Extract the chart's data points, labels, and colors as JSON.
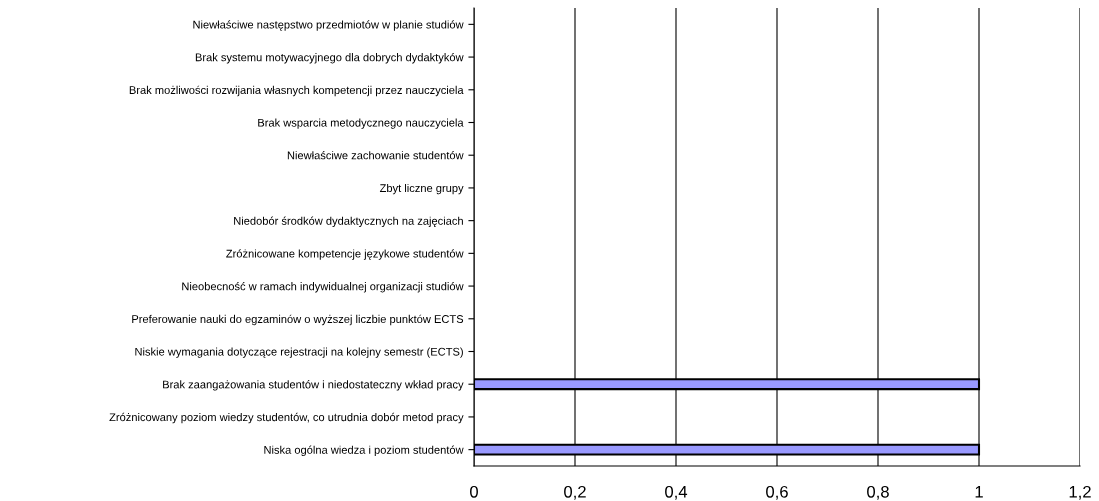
{
  "chart_data": {
    "type": "bar",
    "orientation": "horizontal",
    "categories": [
      "Niewłaściwe następstwo przedmiotów w planie studiów",
      "Brak systemu motywacyjnego dla dobrych dydaktyków",
      "Brak możliwości rozwijania własnych kompetencji przez nauczyciela",
      "Brak wsparcia metodycznego nauczyciela",
      "Niewłaściwe zachowanie studentów",
      "Zbyt liczne grupy",
      "Niedobór środków dydaktycznych na zajęciach",
      "Zróżnicowane kompetencje językowe studentów",
      "Nieobecność w ramach indywidualnej organizacji studiów",
      "Preferowanie nauki do egzaminów o wyższej liczbie punktów ECTS",
      "Niskie wymagania dotyczące rejestracji na kolejny semestr (ECTS)",
      "Brak zaangażowania studentów i niedostateczny wkład pracy",
      "Zróżnicowany poziom wiedzy studentów, co utrudnia dobór metod pracy",
      "Niska ogólna wiedza i poziom studentów"
    ],
    "values": [
      0,
      0,
      0,
      0,
      0,
      0,
      0,
      0,
      0,
      0,
      0,
      1,
      0,
      1
    ],
    "color": "#9999ff",
    "xlim": [
      0,
      1.2
    ],
    "xticks": [
      0,
      {
        "value": 0.2,
        "label": "0,2"
      },
      {
        "value": 0.4,
        "label": "0,4"
      },
      {
        "value": 0.6,
        "label": "0,6"
      },
      {
        "value": 0.8,
        "label": "0,8"
      },
      1,
      {
        "value": 1.2,
        "label": "1,2"
      }
    ],
    "grid": "x",
    "legend": false
  }
}
